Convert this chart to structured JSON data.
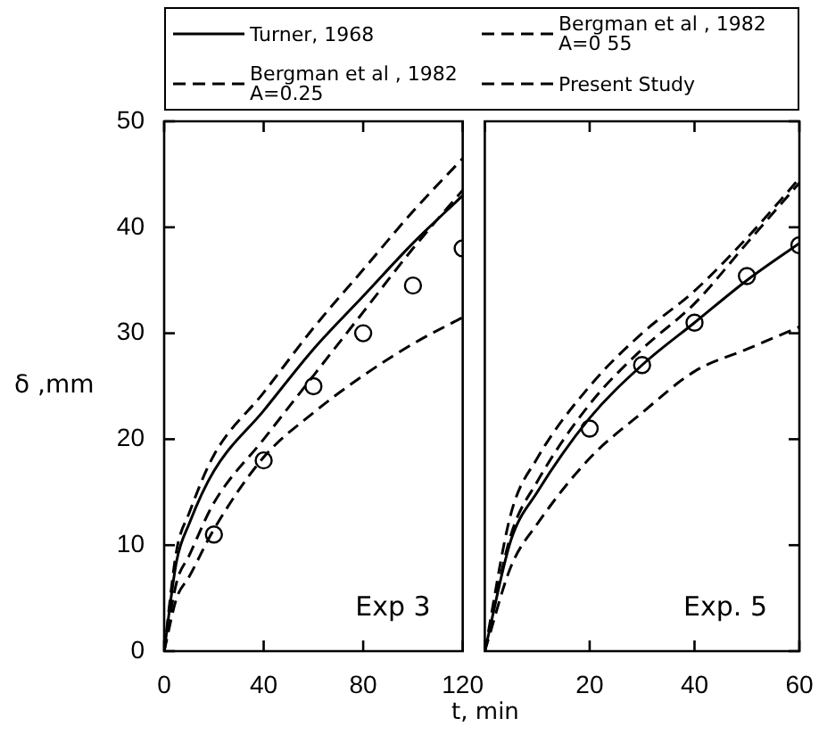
{
  "chart_data": [
    {
      "type": "line",
      "xlabel": "t, min",
      "ylabel": "δ ,mm",
      "legend": "top",
      "grid": false,
      "xlim": [
        0,
        120
      ],
      "ylim": [
        0,
        50
      ],
      "xticks": [
        0,
        40,
        80,
        120
      ],
      "yticks": [
        0,
        10,
        20,
        30,
        40,
        50
      ],
      "annotations": [
        "Exp 3"
      ],
      "x": [
        0,
        5,
        10,
        20,
        40,
        60,
        80,
        100,
        120
      ],
      "series": [
        {
          "name": "Turner, 1968",
          "color": "#000000",
          "line_style": "solid",
          "marker": "none",
          "values": [
            0,
            8.5,
            12,
            17,
            22.7,
            28.5,
            33.5,
            38.5,
            43
          ]
        },
        {
          "name": "Bergman et al , 1982\nA=0 55",
          "color": "#000000",
          "line_style": "dashed",
          "marker": "none",
          "values": [
            0,
            9.5,
            13,
            18.5,
            24.4,
            30.5,
            36,
            41.5,
            46.5
          ]
        },
        {
          "name": "Bergman et al , 1982\nA=0.25",
          "color": "#000000",
          "line_style": "dashed",
          "marker": "none",
          "values": [
            0,
            5,
            7,
            11.5,
            18.3,
            22.5,
            26,
            29,
            31.5
          ]
        },
        {
          "name": "Present Study",
          "color": "#000000",
          "line_style": "dashed",
          "marker": "none",
          "values": [
            0,
            6.5,
            9,
            14,
            20,
            26,
            32,
            38,
            43.5
          ]
        },
        {
          "color": "#000000",
          "type": "scatter",
          "marker": "circle",
          "x": [
            20,
            40,
            60,
            80,
            100,
            120
          ],
          "values": [
            11,
            18,
            25,
            30,
            34.5,
            38
          ]
        }
      ]
    },
    {
      "type": "line",
      "grid": false,
      "tick_labels": "x",
      "xlim": [
        0,
        60
      ],
      "ylim": [
        0,
        50
      ],
      "xticks": [
        {
          "value": 0,
          "label": null
        },
        20,
        40,
        60
      ],
      "yticks": [
        0,
        10,
        20,
        30,
        40,
        50
      ],
      "annotations": [
        "Exp. 5"
      ],
      "x": [
        0,
        5,
        10,
        20,
        30,
        40,
        50,
        60
      ],
      "series": [
        {
          "color": "#000000",
          "line_style": "solid",
          "marker": "none",
          "values": [
            0,
            10.5,
            15,
            22,
            27,
            31,
            35,
            38.5
          ]
        },
        {
          "color": "#000000",
          "line_style": "dashed",
          "marker": "none",
          "values": [
            0,
            13,
            18.2,
            25,
            30,
            34,
            39,
            44.6
          ]
        },
        {
          "color": "#000000",
          "line_style": "dashed",
          "marker": "none",
          "values": [
            0,
            8,
            12,
            18.2,
            22.5,
            26.4,
            28.5,
            30.6
          ]
        },
        {
          "color": "#000000",
          "line_style": "dashed",
          "marker": "none",
          "values": [
            0,
            11,
            16,
            23.3,
            28.5,
            32.8,
            38.5,
            44.2
          ]
        },
        {
          "color": "#000000",
          "type": "scatter",
          "marker": "circle",
          "x": [
            20,
            30,
            40,
            50,
            60
          ],
          "values": [
            21,
            27,
            31,
            35.4,
            38.3
          ]
        }
      ]
    }
  ]
}
